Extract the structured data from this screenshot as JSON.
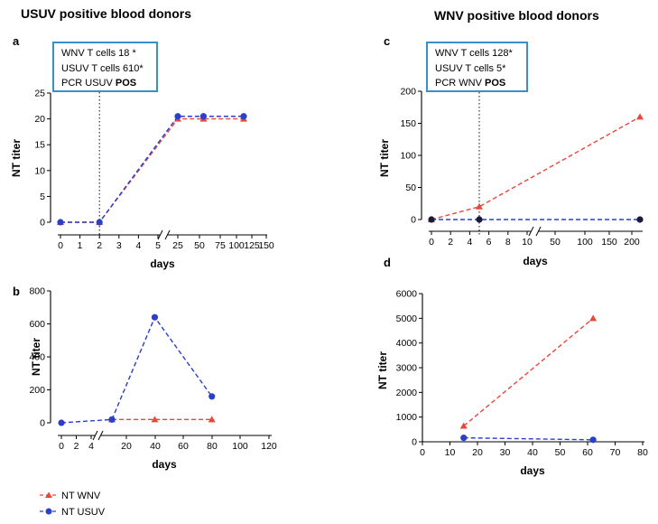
{
  "headers": {
    "left": "USUV positive blood donors",
    "right": "WNV positive blood donors"
  },
  "colors": {
    "wnv": "#e8473a",
    "usuv": "#2b3fc8",
    "annotation_border": "#3a8fc8"
  },
  "legend": {
    "wnv": "NT WNV",
    "usuv": "NT USUV"
  },
  "annotations": {
    "a": {
      "line1": "WNV T cells 18 *",
      "line2": "USUV T cells 610*",
      "line3_prefix": "PCR USUV ",
      "line3_bold": "POS"
    },
    "c": {
      "line1": "WNV T cells 128*",
      "line2": "USUV T cells 5*",
      "line3_prefix": "PCR WNV ",
      "line3_bold": "POS"
    }
  },
  "chart_data": [
    {
      "panel": "a",
      "type": "line",
      "ylabel": "NT titer",
      "xlabel": "days",
      "ylim": [
        0,
        25
      ],
      "yticks": [
        0,
        5,
        10,
        15,
        20,
        25
      ],
      "xticks": [
        "0",
        "1",
        "2",
        "3",
        "4",
        "5",
        "25",
        "50",
        "75",
        "100",
        "125",
        "150"
      ],
      "vline_day": 2,
      "series": [
        {
          "name": "NT WNV",
          "marker": "triangle",
          "x": [
            0,
            2,
            25,
            62,
            120
          ],
          "y": [
            0,
            0,
            20,
            20,
            20
          ]
        },
        {
          "name": "NT USUV",
          "marker": "circle",
          "x": [
            0,
            2,
            25,
            62,
            120
          ],
          "y": [
            0,
            0,
            20.5,
            20.5,
            20.5
          ]
        }
      ]
    },
    {
      "panel": "b",
      "type": "line",
      "ylabel": "NT titer",
      "xlabel": "days",
      "ylim": [
        0,
        800
      ],
      "yticks": [
        0,
        200,
        400,
        600,
        800
      ],
      "xticks": [
        "0",
        "2",
        "4",
        "20",
        "40",
        "60",
        "80",
        "100",
        "120"
      ],
      "series": [
        {
          "name": "NT WNV",
          "marker": "triangle",
          "x": [
            10,
            40,
            80
          ],
          "y": [
            20,
            20,
            20
          ]
        },
        {
          "name": "NT USUV",
          "marker": "circle",
          "x": [
            0,
            10,
            40,
            80
          ],
          "y": [
            0,
            20,
            640,
            160
          ]
        }
      ]
    },
    {
      "panel": "c",
      "type": "line",
      "ylabel": "NT titer",
      "xlabel": "days",
      "ylim": [
        0,
        200
      ],
      "yticks": [
        0,
        50,
        100,
        150,
        200
      ],
      "xticks": [
        "0",
        "2",
        "4",
        "6",
        "8",
        "10",
        "50",
        "100",
        "150",
        "200"
      ],
      "vline_day": 5,
      "series": [
        {
          "name": "NT WNV",
          "marker": "triangle",
          "x": [
            0,
            5,
            230
          ],
          "y": [
            0,
            20,
            160
          ]
        },
        {
          "name": "NT USUV",
          "marker": "circle",
          "x": [
            0,
            5,
            230
          ],
          "y": [
            0,
            0,
            0
          ]
        }
      ]
    },
    {
      "panel": "d",
      "type": "line",
      "ylabel": "NT titer",
      "xlabel": "days",
      "xlim": [
        0,
        80
      ],
      "ylim": [
        0,
        6000
      ],
      "xticks": [
        "0",
        "10",
        "20",
        "30",
        "40",
        "50",
        "60",
        "70",
        "80"
      ],
      "yticks": [
        0,
        1000,
        2000,
        3000,
        4000,
        5000,
        6000
      ],
      "series": [
        {
          "name": "NT WNV",
          "marker": "triangle",
          "x": [
            15,
            62
          ],
          "y": [
            640,
            5000
          ]
        },
        {
          "name": "NT USUV",
          "marker": "circle",
          "x": [
            15,
            62
          ],
          "y": [
            160,
            80
          ]
        }
      ]
    }
  ]
}
